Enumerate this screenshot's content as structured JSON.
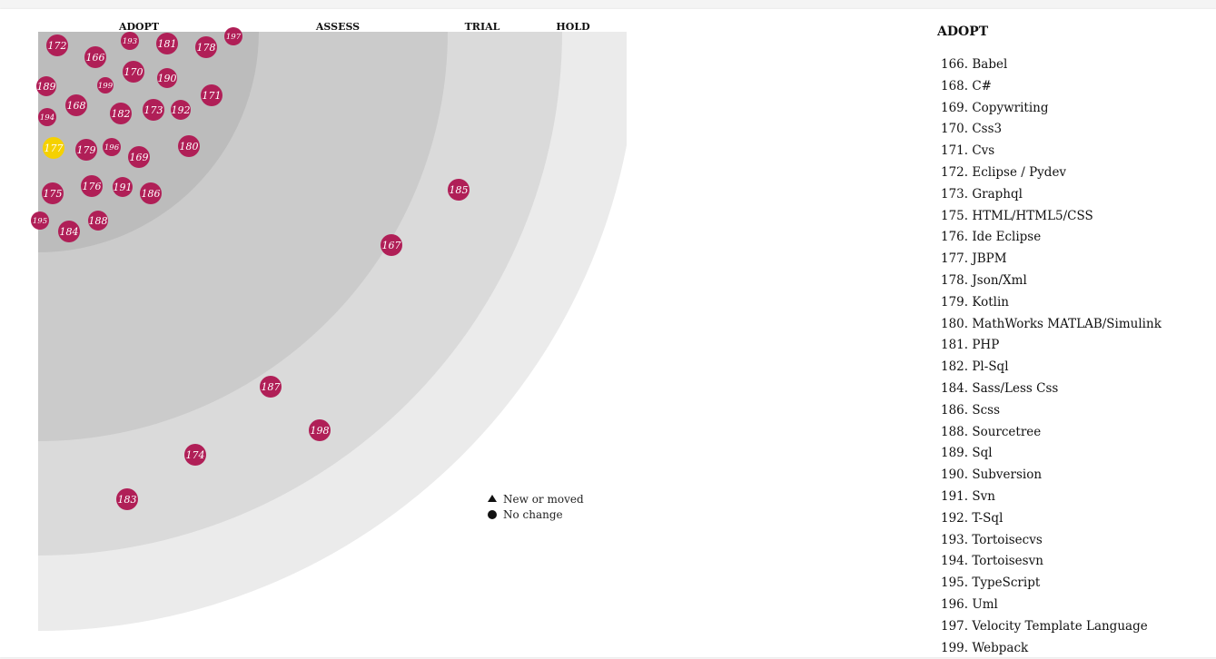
{
  "chart_data": {
    "type": "radar",
    "rings": [
      "ADOPT",
      "ASSESS",
      "TRIAL",
      "HOLD"
    ],
    "colors": {
      "ring_adopt": "#bcbcbc",
      "ring_assess": "#cbcbcb",
      "ring_trial": "#dadada",
      "ring_hold": "#ebebeb",
      "blip": "#b01f57",
      "blip_highlight": "#f5d100"
    },
    "blips": [
      {
        "id": "172",
        "ring": "ADOPT"
      },
      {
        "id": "193",
        "ring": "ADOPT"
      },
      {
        "id": "181",
        "ring": "ADOPT"
      },
      {
        "id": "178",
        "ring": "ADOPT"
      },
      {
        "id": "197",
        "ring": "ADOPT"
      },
      {
        "id": "166",
        "ring": "ADOPT"
      },
      {
        "id": "170",
        "ring": "ADOPT"
      },
      {
        "id": "190",
        "ring": "ADOPT"
      },
      {
        "id": "189",
        "ring": "ADOPT"
      },
      {
        "id": "199",
        "ring": "ADOPT"
      },
      {
        "id": "171",
        "ring": "ADOPT"
      },
      {
        "id": "168",
        "ring": "ADOPT"
      },
      {
        "id": "182",
        "ring": "ADOPT"
      },
      {
        "id": "173",
        "ring": "ADOPT"
      },
      {
        "id": "192",
        "ring": "ADOPT"
      },
      {
        "id": "194",
        "ring": "ADOPT"
      },
      {
        "id": "177",
        "ring": "ADOPT",
        "highlight": true
      },
      {
        "id": "179",
        "ring": "ADOPT"
      },
      {
        "id": "196",
        "ring": "ADOPT"
      },
      {
        "id": "169",
        "ring": "ADOPT"
      },
      {
        "id": "180",
        "ring": "ADOPT"
      },
      {
        "id": "175",
        "ring": "ADOPT"
      },
      {
        "id": "176",
        "ring": "ADOPT"
      },
      {
        "id": "191",
        "ring": "ADOPT"
      },
      {
        "id": "186",
        "ring": "ADOPT"
      },
      {
        "id": "195",
        "ring": "ADOPT"
      },
      {
        "id": "184",
        "ring": "ADOPT"
      },
      {
        "id": "188",
        "ring": "ADOPT"
      },
      {
        "id": "185",
        "ring": "TRIAL"
      },
      {
        "id": "167",
        "ring": "TRIAL"
      },
      {
        "id": "187",
        "ring": "TRIAL"
      },
      {
        "id": "198",
        "ring": "TRIAL"
      },
      {
        "id": "174",
        "ring": "TRIAL"
      },
      {
        "id": "183",
        "ring": "TRIAL"
      }
    ],
    "legend": [
      {
        "shape": "triangle",
        "label": "New or moved"
      },
      {
        "shape": "circle",
        "label": "No change"
      }
    ]
  },
  "sidebar": {
    "title": "ADOPT",
    "items": [
      "166. Babel",
      "168. C#",
      "169. Copywriting",
      "170. Css3",
      "171. Cvs",
      "172. Eclipse / Pydev",
      "173. Graphql",
      "175. HTML/HTML5/CSS",
      "176. Ide Eclipse",
      "177. JBPM",
      "178. Json/Xml",
      "179. Kotlin",
      "180. MathWorks MATLAB/Simulink",
      "181. PHP",
      "182. Pl-Sql",
      "184. Sass/Less Css",
      "186. Scss",
      "188. Sourcetree",
      "189. Sql",
      "190. Subversion",
      "191. Svn",
      "192. T-Sql",
      "193. Tortoisecvs",
      "194. Tortoisesvn",
      "195. TypeScript",
      "196. Uml",
      "197. Velocity Template Language",
      "199. Webpack"
    ]
  }
}
